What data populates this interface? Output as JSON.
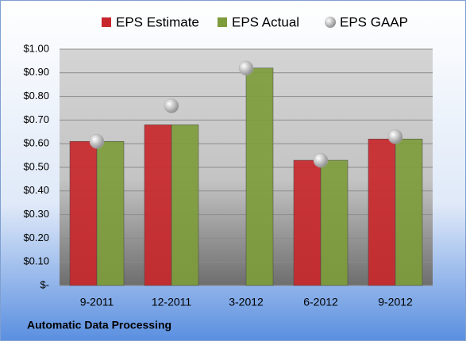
{
  "chart_data": {
    "type": "bar",
    "title": "Automatic Data Processing",
    "categories": [
      "9-2011",
      "12-2011",
      "3-2012",
      "6-2012",
      "9-2012"
    ],
    "series": [
      {
        "name": "EPS Estimate",
        "type": "bar",
        "color": "#c8282d",
        "values": [
          0.61,
          0.68,
          null,
          0.53,
          0.62
        ]
      },
      {
        "name": "EPS Actual",
        "type": "bar",
        "color": "#7d9c3c",
        "values": [
          0.61,
          0.68,
          0.92,
          0.53,
          0.62
        ]
      },
      {
        "name": "EPS GAAP",
        "type": "scatter",
        "color": "#b0b0b0",
        "values": [
          0.61,
          0.76,
          0.92,
          0.53,
          0.63
        ]
      }
    ],
    "ylim": [
      0,
      1
    ],
    "yticks": [
      {
        "value": 0,
        "label": "$-"
      },
      {
        "value": 0.1,
        "label": "$0.10"
      },
      {
        "value": 0.2,
        "label": "$0.20"
      },
      {
        "value": 0.3,
        "label": "$0.30"
      },
      {
        "value": 0.4,
        "label": "$0.40"
      },
      {
        "value": 0.5,
        "label": "$0.50"
      },
      {
        "value": 0.6,
        "label": "$0.60"
      },
      {
        "value": 0.7,
        "label": "$0.70"
      },
      {
        "value": 0.8,
        "label": "$0.80"
      },
      {
        "value": 0.9,
        "label": "$0.90"
      },
      {
        "value": 1,
        "label": "$1.00"
      }
    ],
    "grid": true,
    "legend": "top"
  }
}
